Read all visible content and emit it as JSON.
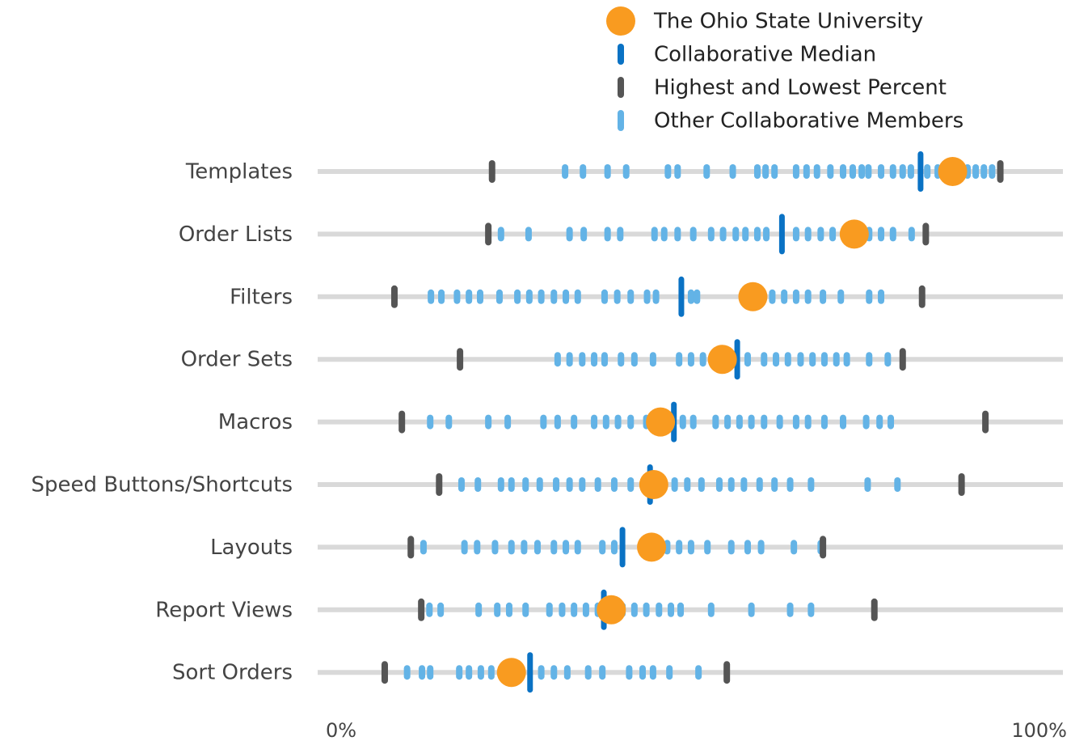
{
  "chart_data": {
    "type": "strip",
    "categories": [
      "Templates",
      "Order Lists",
      "Filters",
      "Order Sets",
      "Macros",
      "Speed Buttons/Shortcuts",
      "Layouts",
      "Report Views",
      "Sort Orders"
    ],
    "xlim": [
      0,
      100
    ],
    "xticks": [
      {
        "value": 0,
        "label": "0%"
      },
      {
        "value": 100,
        "label": "100%"
      }
    ],
    "series": [
      {
        "name": "The Ohio State University",
        "color": "#f99b20",
        "values": [
          85.2,
          72.0,
          58.4,
          54.3,
          46.0,
          45.1,
          44.8,
          39.4,
          26.0
        ]
      },
      {
        "name": "Collaborative Median",
        "color": "#0a72c4",
        "values": [
          80.9,
          62.3,
          48.8,
          56.3,
          47.8,
          44.6,
          40.9,
          38.4,
          28.5
        ]
      },
      {
        "name": "Highest and Lowest Percent",
        "color": "#555555",
        "values": [
          [
            23.4,
            91.6
          ],
          [
            22.9,
            81.6
          ],
          [
            10.3,
            81.1
          ],
          [
            19.1,
            78.5
          ],
          [
            11.3,
            89.6
          ],
          [
            16.3,
            86.4
          ],
          [
            12.5,
            67.8
          ],
          [
            13.9,
            74.7
          ],
          [
            9.0,
            54.9
          ]
        ]
      },
      {
        "name": "Other Collaborative Members",
        "color": "#63b3e6",
        "values": [
          [
            33.2,
            35.6,
            38.9,
            41.4,
            47.0,
            48.3,
            52.2,
            55.7,
            59.0,
            60.1,
            61.3,
            64.2,
            65.6,
            67.0,
            68.8,
            70.5,
            71.8,
            73.0,
            73.9,
            75.6,
            77.2,
            78.5,
            79.6,
            81.8,
            83.2,
            87.2,
            88.3,
            89.4,
            90.5
          ],
          [
            24.6,
            28.3,
            33.8,
            35.7,
            38.9,
            40.6,
            45.2,
            46.5,
            48.3,
            50.4,
            52.8,
            54.4,
            56.1,
            57.4,
            59.0,
            60.2,
            64.2,
            65.8,
            67.5,
            69.1,
            74.0,
            75.6,
            77.2,
            79.7
          ],
          [
            15.2,
            16.6,
            18.7,
            20.3,
            21.8,
            24.4,
            26.8,
            28.4,
            30.0,
            31.7,
            33.3,
            34.9,
            38.5,
            40.2,
            42.0,
            44.2,
            45.4,
            50.1,
            50.9,
            61.0,
            62.6,
            64.2,
            65.8,
            67.8,
            70.2,
            74.0,
            75.6
          ],
          [
            32.2,
            33.8,
            35.5,
            37.1,
            38.5,
            40.7,
            42.5,
            45.0,
            48.5,
            50.1,
            51.7,
            57.7,
            59.9,
            61.5,
            63.1,
            64.8,
            66.4,
            68.0,
            69.6,
            71.0,
            74.0,
            76.5
          ],
          [
            15.1,
            17.6,
            22.9,
            25.5,
            30.3,
            32.2,
            34.4,
            37.1,
            38.7,
            40.3,
            42.0,
            44.1,
            49.0,
            50.4,
            53.4,
            55.0,
            56.6,
            58.2,
            59.9,
            62.0,
            64.2,
            65.8,
            68.0,
            70.5,
            73.6,
            75.4,
            76.9
          ],
          [
            19.3,
            21.5,
            24.6,
            26.0,
            27.9,
            29.8,
            32.0,
            33.8,
            35.5,
            37.6,
            39.8,
            42.0,
            47.9,
            49.6,
            51.5,
            53.9,
            55.5,
            57.2,
            59.3,
            61.3,
            63.4,
            66.2,
            73.8,
            77.8
          ],
          [
            14.2,
            19.7,
            21.4,
            23.8,
            26.0,
            27.7,
            29.5,
            31.7,
            33.3,
            34.9,
            38.2,
            39.8,
            46.9,
            48.5,
            50.1,
            52.3,
            55.5,
            57.7,
            59.5,
            63.9,
            67.5
          ],
          [
            15.0,
            16.5,
            21.6,
            24.1,
            25.7,
            27.9,
            31.1,
            32.8,
            34.4,
            36.0,
            37.6,
            40.9,
            42.5,
            44.1,
            45.8,
            47.4,
            48.7,
            52.8,
            58.2,
            63.4,
            66.2
          ],
          [
            12.0,
            14.0,
            15.1,
            19.0,
            20.3,
            21.9,
            23.3,
            30.0,
            31.7,
            33.5,
            36.3,
            38.2,
            41.8,
            43.6,
            45.0,
            47.2,
            51.1
          ]
        ]
      }
    ]
  }
}
